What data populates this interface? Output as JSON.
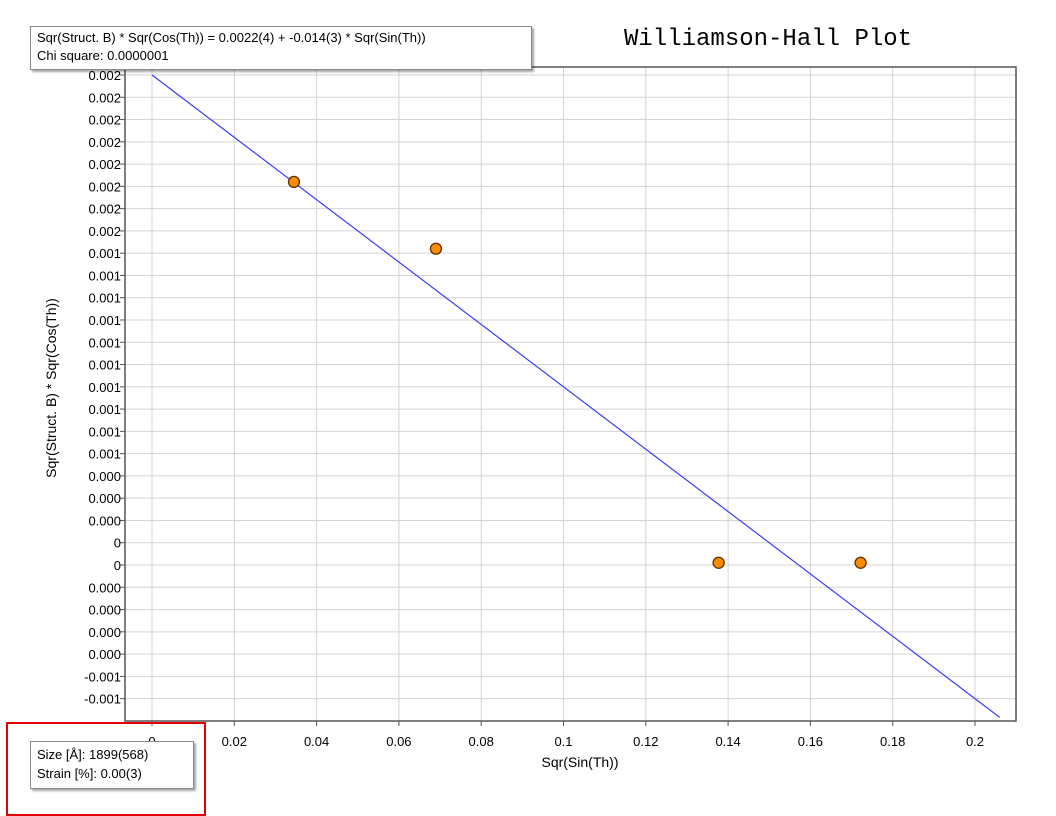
{
  "title": "Williamson-Hall Plot",
  "tooltip": {
    "equation": "Sqr(Struct. B) * Sqr(Cos(Th)) = 0.0022(4) + -0.014(3) * Sqr(Sin(Th))",
    "chi_square": "Chi square: 0.0000001"
  },
  "stats": {
    "size": "Size [Å]: 1899(568)",
    "strain": "Strain [%]: 0.00(3)"
  },
  "colors": {
    "fit_line": "#3b3bff",
    "marker_fill": "#ff8c00",
    "marker_edge": "#5a3000",
    "highlight_frame": "#e00000"
  },
  "chart_data": {
    "type": "scatter",
    "xlabel": "Sqr(Sin(Th))",
    "ylabel": "Sqr(Struct. B) * Sqr(Cos(Th))",
    "xlim": [
      -0.006,
      0.212
    ],
    "ylim": [
      -0.00065,
      0.00225
    ],
    "x_ticks": [
      0,
      0.02,
      0.04,
      0.06,
      0.08,
      0.1,
      0.12,
      0.14,
      0.16,
      0.18,
      0.2
    ],
    "x_tick_labels": [
      "0",
      "0.02",
      "0.04",
      "0.06",
      "0.08",
      "0.1",
      "0.12",
      "0.14",
      "0.16",
      "0.18",
      "0.2"
    ],
    "y_ticks": [
      0.0022,
      0.0021,
      0.002,
      0.0019,
      0.0018,
      0.0017,
      0.0016,
      0.0015,
      0.0014,
      0.0013,
      0.0012,
      0.0011,
      0.001,
      0.0009,
      0.0008,
      0.0007,
      0.0006,
      0.0005,
      0.0004,
      0.0003,
      0.0002,
      0.0001,
      0,
      -0.0001,
      -0.0002,
      -0.0003,
      -0.0004,
      -0.0005,
      -0.0006
    ],
    "y_tick_labels": [
      "0.002",
      "0.002",
      "0.002",
      "0.002",
      "0.002",
      "0.002",
      "0.002",
      "0.002",
      "0.001",
      "0.001",
      "0.001",
      "0.001",
      "0.001",
      "0.001",
      "0.001",
      "0.001",
      "0.001",
      "0.001",
      "0.000",
      "0.000",
      "0.000",
      "0",
      "0",
      "0.000",
      "0.000",
      "0.000",
      "0.000",
      "-0.001",
      "-0.001"
    ],
    "grid": true,
    "points": [
      {
        "x": 0.0345,
        "y": 0.00172
      },
      {
        "x": 0.069,
        "y": 0.00142
      },
      {
        "x": 0.1377,
        "y": 1e-05
      },
      {
        "x": 0.1722,
        "y": 1e-05
      }
    ],
    "fit": {
      "intercept": 0.0022,
      "slope": -0.014,
      "x_range": [
        0,
        0.206
      ]
    }
  }
}
